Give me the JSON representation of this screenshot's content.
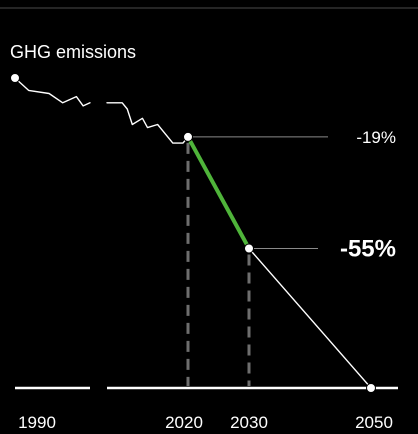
{
  "chart_data": {
    "type": "line",
    "ylabel": "GHG emissions",
    "x_ticks": [
      "1990",
      "2020",
      "2030",
      "2050"
    ],
    "ylim": [
      -100,
      0
    ],
    "series": [
      {
        "key": "history",
        "points": [
          [
            1990,
            0
          ],
          [
            1992,
            -4
          ],
          [
            1995,
            -5
          ],
          [
            1997,
            -8
          ],
          [
            1999,
            -6
          ],
          [
            2000,
            -9
          ],
          [
            2001,
            -8
          ],
          [
            2004,
            -8
          ],
          [
            2007,
            -8
          ],
          [
            2008,
            -10
          ],
          [
            2009,
            -15
          ],
          [
            2011,
            -13
          ],
          [
            2012,
            -16
          ],
          [
            2014,
            -15
          ],
          [
            2017,
            -21
          ],
          [
            2019,
            -21
          ],
          [
            2020,
            -19
          ]
        ],
        "break_between": [
          2001,
          2004
        ],
        "color": "#ffffff"
      },
      {
        "key": "target-2030",
        "points": [
          [
            2020,
            -19
          ],
          [
            2030,
            -55
          ]
        ],
        "color": "#4fb43a"
      },
      {
        "key": "trajectory-2050",
        "points": [
          [
            2030,
            -55
          ],
          [
            2050,
            -100
          ]
        ],
        "color": "#ffffff"
      }
    ],
    "annotations": [
      {
        "key": "ann-2020",
        "x": 2020,
        "y": -19,
        "label": "-19%",
        "bold": false
      },
      {
        "key": "ann-2030",
        "x": 2030,
        "y": -55,
        "label": "-55%",
        "bold": true
      }
    ],
    "markers": [
      {
        "x": 1990,
        "y": 0
      },
      {
        "x": 2020,
        "y": -19
      },
      {
        "x": 2030,
        "y": -55
      },
      {
        "x": 2050,
        "y": -100
      }
    ],
    "reference_lines": [
      2020,
      2030
    ],
    "axis_break_between": [
      2001,
      2004
    ],
    "grid": false
  }
}
